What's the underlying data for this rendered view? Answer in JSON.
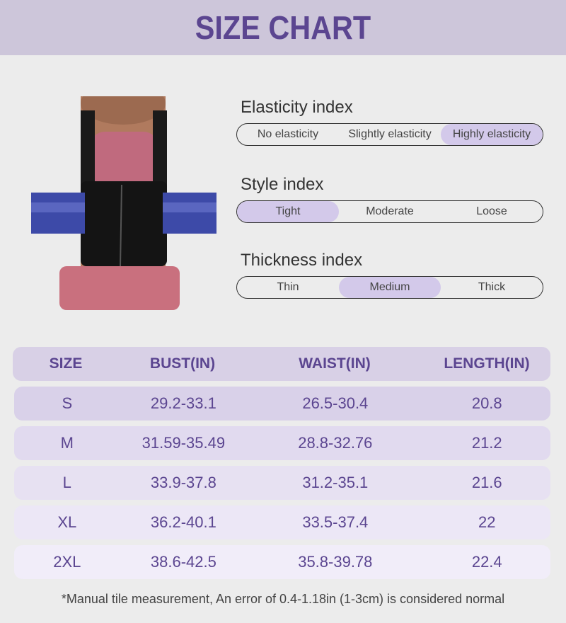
{
  "header": {
    "title": "SIZE CHART"
  },
  "colors": {
    "accent": "#5b4590",
    "highlight": "#d3c9ea",
    "title_bar": "#cdc6da"
  },
  "indices": [
    {
      "title": "Elasticity index",
      "options": [
        "No elasticity",
        "Slightly elasticity",
        "Highly elasticity"
      ],
      "selected": 2
    },
    {
      "title": "Style index",
      "options": [
        "Tight",
        "Moderate",
        "Loose"
      ],
      "selected": 0
    },
    {
      "title": "Thickness index",
      "options": [
        "Thin",
        "Medium",
        "Thick"
      ],
      "selected": 1
    }
  ],
  "table": {
    "headers": [
      "SIZE",
      "BUST(IN)",
      "WAIST(IN)",
      "LENGTH(IN)"
    ],
    "rows": [
      [
        "S",
        "29.2-33.1",
        "26.5-30.4",
        "20.8"
      ],
      [
        "M",
        "31.59-35.49",
        "28.8-32.76",
        "21.2"
      ],
      [
        "L",
        "33.9-37.8",
        "31.2-35.1",
        "21.6"
      ],
      [
        "XL",
        "36.2-40.1",
        "33.5-37.4",
        "22"
      ],
      [
        "2XL",
        "38.6-42.5",
        "35.8-39.78",
        "22.4"
      ]
    ],
    "row_colors": [
      "#d9d1e9",
      "#e1daef",
      "#e7e1f2",
      "#ece7f6",
      "#f1edf9"
    ]
  },
  "footnote": "*Manual tile measurement, An error of 0.4-1.18in (1-3cm) is considered normal"
}
